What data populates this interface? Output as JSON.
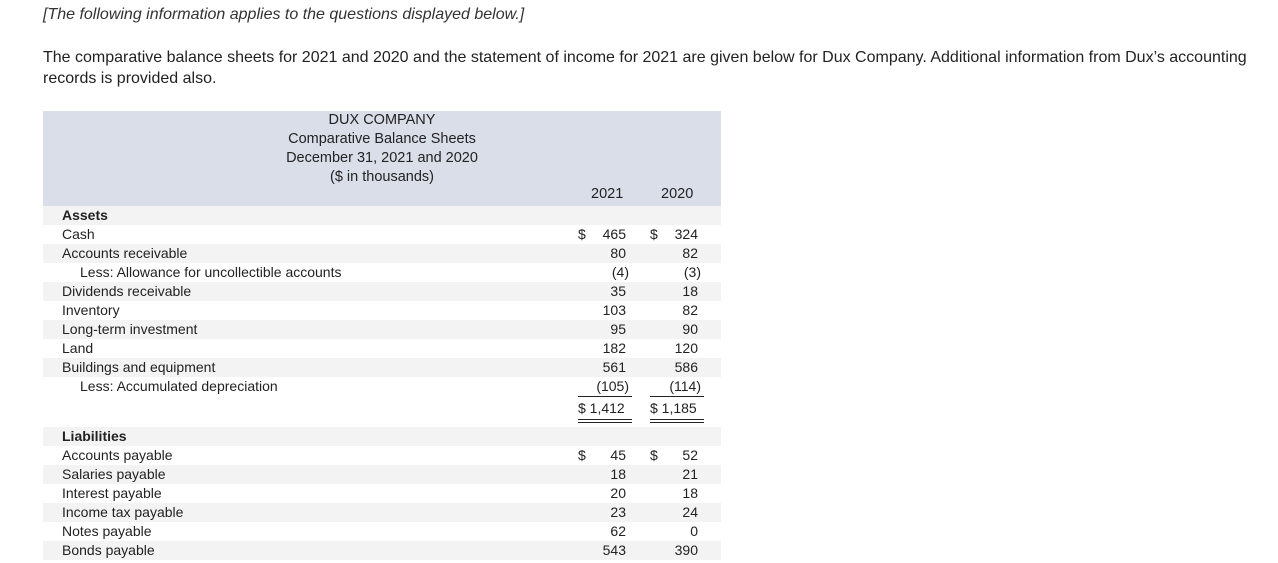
{
  "note": "[The following information applies to the questions displayed below.]",
  "intro": "The comparative balance sheets for 2021 and 2020 and the statement of income for 2021 are given below for Dux Company. Additional information from Dux’s accounting records is provided also.",
  "header": {
    "company": "DUX COMPANY",
    "statement": "Comparative Balance Sheets",
    "dates": "December 31, 2021 and 2020",
    "units": "($ in thousands)",
    "col1": "2021",
    "col2": "2020"
  },
  "assets": {
    "heading": "Assets",
    "rows": [
      {
        "label": "Cash",
        "y2021": "465",
        "y2020": "324",
        "dollar": "$"
      },
      {
        "label": "Accounts receivable",
        "y2021": "80",
        "y2020": "82"
      },
      {
        "label": "Less: Allowance for uncollectible accounts",
        "y2021": "(4)",
        "y2020": "(3)"
      },
      {
        "label": "Dividends receivable",
        "y2021": "35",
        "y2020": "18"
      },
      {
        "label": "Inventory",
        "y2021": "103",
        "y2020": "82"
      },
      {
        "label": "Long-term investment",
        "y2021": "95",
        "y2020": "90"
      },
      {
        "label": "Land",
        "y2021": "182",
        "y2020": "120"
      },
      {
        "label": "Buildings and equipment",
        "y2021": "561",
        "y2020": "586"
      },
      {
        "label": "Less: Accumulated depreciation",
        "y2021": "(105)",
        "y2020": "(114)"
      }
    ],
    "total_2021": "$ 1,412",
    "total_2020": "$ 1,185"
  },
  "liabilities": {
    "heading": "Liabilities",
    "rows": [
      {
        "label": "Accounts payable",
        "y2021": "45",
        "y2020": "52",
        "dollar": "$"
      },
      {
        "label": "Salaries payable",
        "y2021": "18",
        "y2020": "21"
      },
      {
        "label": "Interest payable",
        "y2021": "20",
        "y2020": "18"
      },
      {
        "label": "Income tax payable",
        "y2021": "23",
        "y2020": "24"
      },
      {
        "label": "Notes payable",
        "y2021": "62",
        "y2020": "0"
      },
      {
        "label": "Bonds payable",
        "y2021": "543",
        "y2020": "390"
      }
    ]
  }
}
